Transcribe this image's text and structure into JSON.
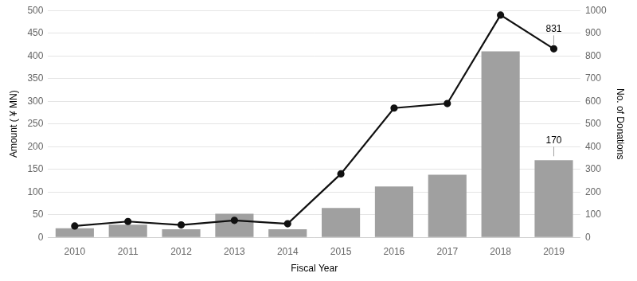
{
  "chart_data": {
    "type": "bar",
    "categories": [
      "2010",
      "2011",
      "2012",
      "2013",
      "2014",
      "2015",
      "2016",
      "2017",
      "2018",
      "2019"
    ],
    "series": [
      {
        "type": "bar",
        "color": "#a0a0a0",
        "axis": "y",
        "values": [
          20,
          28,
          18,
          52,
          18,
          65,
          112,
          138,
          410,
          170
        ]
      },
      {
        "type": "line",
        "color": "#111111",
        "axis": "y2",
        "marker": "circle",
        "line_style": "solid",
        "values": [
          50,
          70,
          55,
          75,
          60,
          280,
          570,
          590,
          980,
          831
        ]
      }
    ],
    "xlabel": "Fiscal Year",
    "ylabel": "Amount ( ¥ MN)",
    "y2label": "No. of Donations",
    "ylim": [
      0,
      500
    ],
    "yticks": [
      0,
      50,
      100,
      150,
      200,
      250,
      300,
      350,
      400,
      450,
      500
    ],
    "y2lim": [
      0,
      1000
    ],
    "y2ticks": [
      0,
      100,
      200,
      300,
      400,
      500,
      600,
      700,
      800,
      900,
      1000
    ],
    "grid": true,
    "annotations": [
      {
        "text": "831",
        "x": "2019",
        "y": 831,
        "axis": "y2"
      },
      {
        "text": "170",
        "x": "2019",
        "y": 170,
        "axis": "y"
      }
    ]
  }
}
